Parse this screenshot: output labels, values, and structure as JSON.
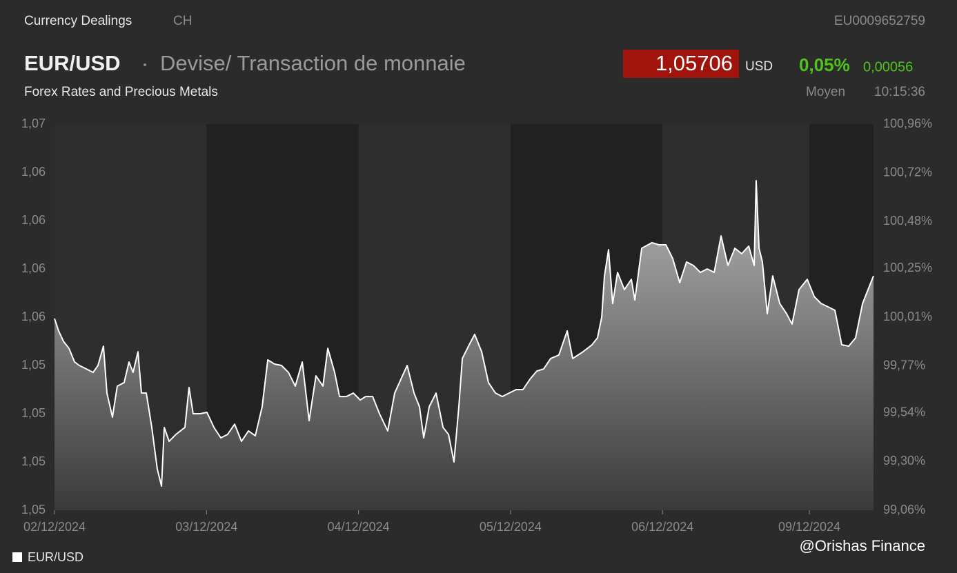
{
  "header": {
    "section": "Currency Dealings",
    "country": "CH",
    "isin": "EU0009652759",
    "symbol": "EUR/USD",
    "name": "Devise/ Transaction de monnaie",
    "subtitle": "Forex Rates and Precious Metals",
    "price": "1,05706",
    "currency": "USD",
    "change_pct": "0,05%",
    "change_abs": "0,00056",
    "price_type": "Moyen",
    "time": "10:15:36",
    "watermark": "@Orishas Finance"
  },
  "chart_data": {
    "type": "line",
    "x": [
      0,
      0.027,
      0.059,
      0.095,
      0.132,
      0.163,
      0.209,
      0.254,
      0.286,
      0.322,
      0.345,
      0.381,
      0.413,
      0.458,
      0.49,
      0.517,
      0.549,
      0.572,
      0.604,
      0.64,
      0.676,
      0.704,
      0.722,
      0.754,
      0.799,
      0.858,
      0.885,
      0.912,
      0.958,
      1.003,
      1.049,
      1.094,
      1.139,
      1.185,
      1.23,
      1.276,
      1.321,
      1.366,
      1.403,
      1.448,
      1.493,
      1.539,
      1.584,
      1.63,
      1.675,
      1.72,
      1.766,
      1.798,
      1.843,
      1.875,
      1.92,
      1.966,
      2.011,
      2.047,
      2.093,
      2.138,
      2.192,
      2.238,
      2.283,
      2.32,
      2.365,
      2.401,
      2.429,
      2.465,
      2.51,
      2.556,
      2.592,
      2.628,
      2.66,
      2.683,
      2.728,
      2.764,
      2.81,
      2.855,
      2.901,
      2.946,
      2.991,
      3.037,
      3.082,
      3.128,
      3.173,
      3.218,
      3.264,
      3.318,
      3.373,
      3.409,
      3.477,
      3.536,
      3.572,
      3.6,
      3.618,
      3.645,
      3.672,
      3.704,
      3.749,
      3.795,
      3.818,
      3.863,
      3.931,
      3.976,
      4.022,
      4.067,
      4.113,
      4.158,
      4.203,
      4.249,
      4.294,
      4.34,
      4.385,
      4.43,
      4.476,
      4.521,
      4.567,
      4.603,
      4.616,
      4.635,
      4.657,
      4.689,
      4.725,
      4.771,
      4.816,
      4.852,
      4.898,
      4.952,
      4.998,
      5.043,
      5.088,
      5.134,
      5.179,
      5.225,
      5.27,
      5.316,
      5.352,
      5.388
    ],
    "series": [
      {
        "name": "EUR/USD",
        "color": "#ffffff",
        "values": [
          1.05503,
          1.05439,
          1.05385,
          1.05349,
          1.05278,
          1.0526,
          1.05242,
          1.05224,
          1.0526,
          1.0536,
          1.05117,
          1.04992,
          1.05153,
          1.05171,
          1.05278,
          1.05224,
          1.05331,
          1.05117,
          1.05117,
          1.04939,
          1.04724,
          1.04635,
          1.04939,
          1.04867,
          1.04903,
          1.04939,
          1.05146,
          1.0501,
          1.0501,
          1.05017,
          1.04939,
          1.04885,
          1.04903,
          1.04956,
          1.04867,
          1.04921,
          1.04896,
          1.05046,
          1.05289,
          1.05267,
          1.0526,
          1.05224,
          1.05153,
          1.05278,
          1.04974,
          1.05206,
          1.05153,
          1.05349,
          1.05224,
          1.05099,
          1.05099,
          1.05117,
          1.05081,
          1.05099,
          1.05099,
          1.0501,
          1.04921,
          1.05117,
          1.05196,
          1.0526,
          1.05117,
          1.05046,
          1.04885,
          1.05046,
          1.05117,
          1.04939,
          1.04903,
          1.0476,
          1.05046,
          1.05296,
          1.05367,
          1.05421,
          1.05331,
          1.05171,
          1.05117,
          1.05099,
          1.05117,
          1.05135,
          1.05135,
          1.05189,
          1.05231,
          1.05242,
          1.05296,
          1.05314,
          1.05439,
          1.05296,
          1.05331,
          1.05367,
          1.05403,
          1.0551,
          1.05724,
          1.0586,
          1.05581,
          1.05742,
          1.05653,
          1.05706,
          1.05599,
          1.05867,
          1.05896,
          1.05885,
          1.05885,
          1.05814,
          1.05689,
          1.05796,
          1.05778,
          1.05742,
          1.0576,
          1.05742,
          1.05931,
          1.05778,
          1.05867,
          1.05839,
          1.05878,
          1.05778,
          1.06217,
          1.05867,
          1.05796,
          1.05528,
          1.05724,
          1.05581,
          1.05528,
          1.05474,
          1.05653,
          1.05706,
          1.05617,
          1.05581,
          1.05564,
          1.05546,
          1.05367,
          1.0536,
          1.05403,
          1.05581,
          1.05653,
          1.05724
        ]
      }
    ],
    "xlim": [
      0,
      5.388
    ],
    "xticks": [
      {
        "value": 0,
        "label": "02/12/2024"
      },
      {
        "value": 1,
        "label": "03/12/2024"
      },
      {
        "value": 2,
        "label": "04/12/2024"
      },
      {
        "value": 3,
        "label": "05/12/2024"
      },
      {
        "value": 4,
        "label": "06/12/2024"
      },
      {
        "value": 4.966,
        "label": "09/12/2024"
      }
    ],
    "ylim": [
      1.0451,
      1.0651
    ],
    "yticks": [
      {
        "value": 1.0451,
        "label": "1,05"
      },
      {
        "value": 1.0476,
        "label": "1,05"
      },
      {
        "value": 1.0501,
        "label": "1,05"
      },
      {
        "value": 1.0526,
        "label": "1,05"
      },
      {
        "value": 1.0551,
        "label": "1,06"
      },
      {
        "value": 1.0576,
        "label": "1,06"
      },
      {
        "value": 1.0601,
        "label": "1,06"
      },
      {
        "value": 1.0626,
        "label": "1,06"
      },
      {
        "value": 1.0651,
        "label": "1,07"
      }
    ],
    "y2lim": [
      99.06,
      100.96
    ],
    "y2ticks": [
      {
        "value": 99.06,
        "label": "99,06%"
      },
      {
        "value": 99.3,
        "label": "99,30%"
      },
      {
        "value": 99.54,
        "label": "99,54%"
      },
      {
        "value": 99.77,
        "label": "99,77%"
      },
      {
        "value": 100.01,
        "label": "100,01%"
      },
      {
        "value": 100.25,
        "label": "100,25%"
      },
      {
        "value": 100.48,
        "label": "100,48%"
      },
      {
        "value": 100.72,
        "label": "100,72%"
      },
      {
        "value": 100.96,
        "label": "100,96%"
      }
    ],
    "grid": false,
    "legend": "bottom-left"
  }
}
